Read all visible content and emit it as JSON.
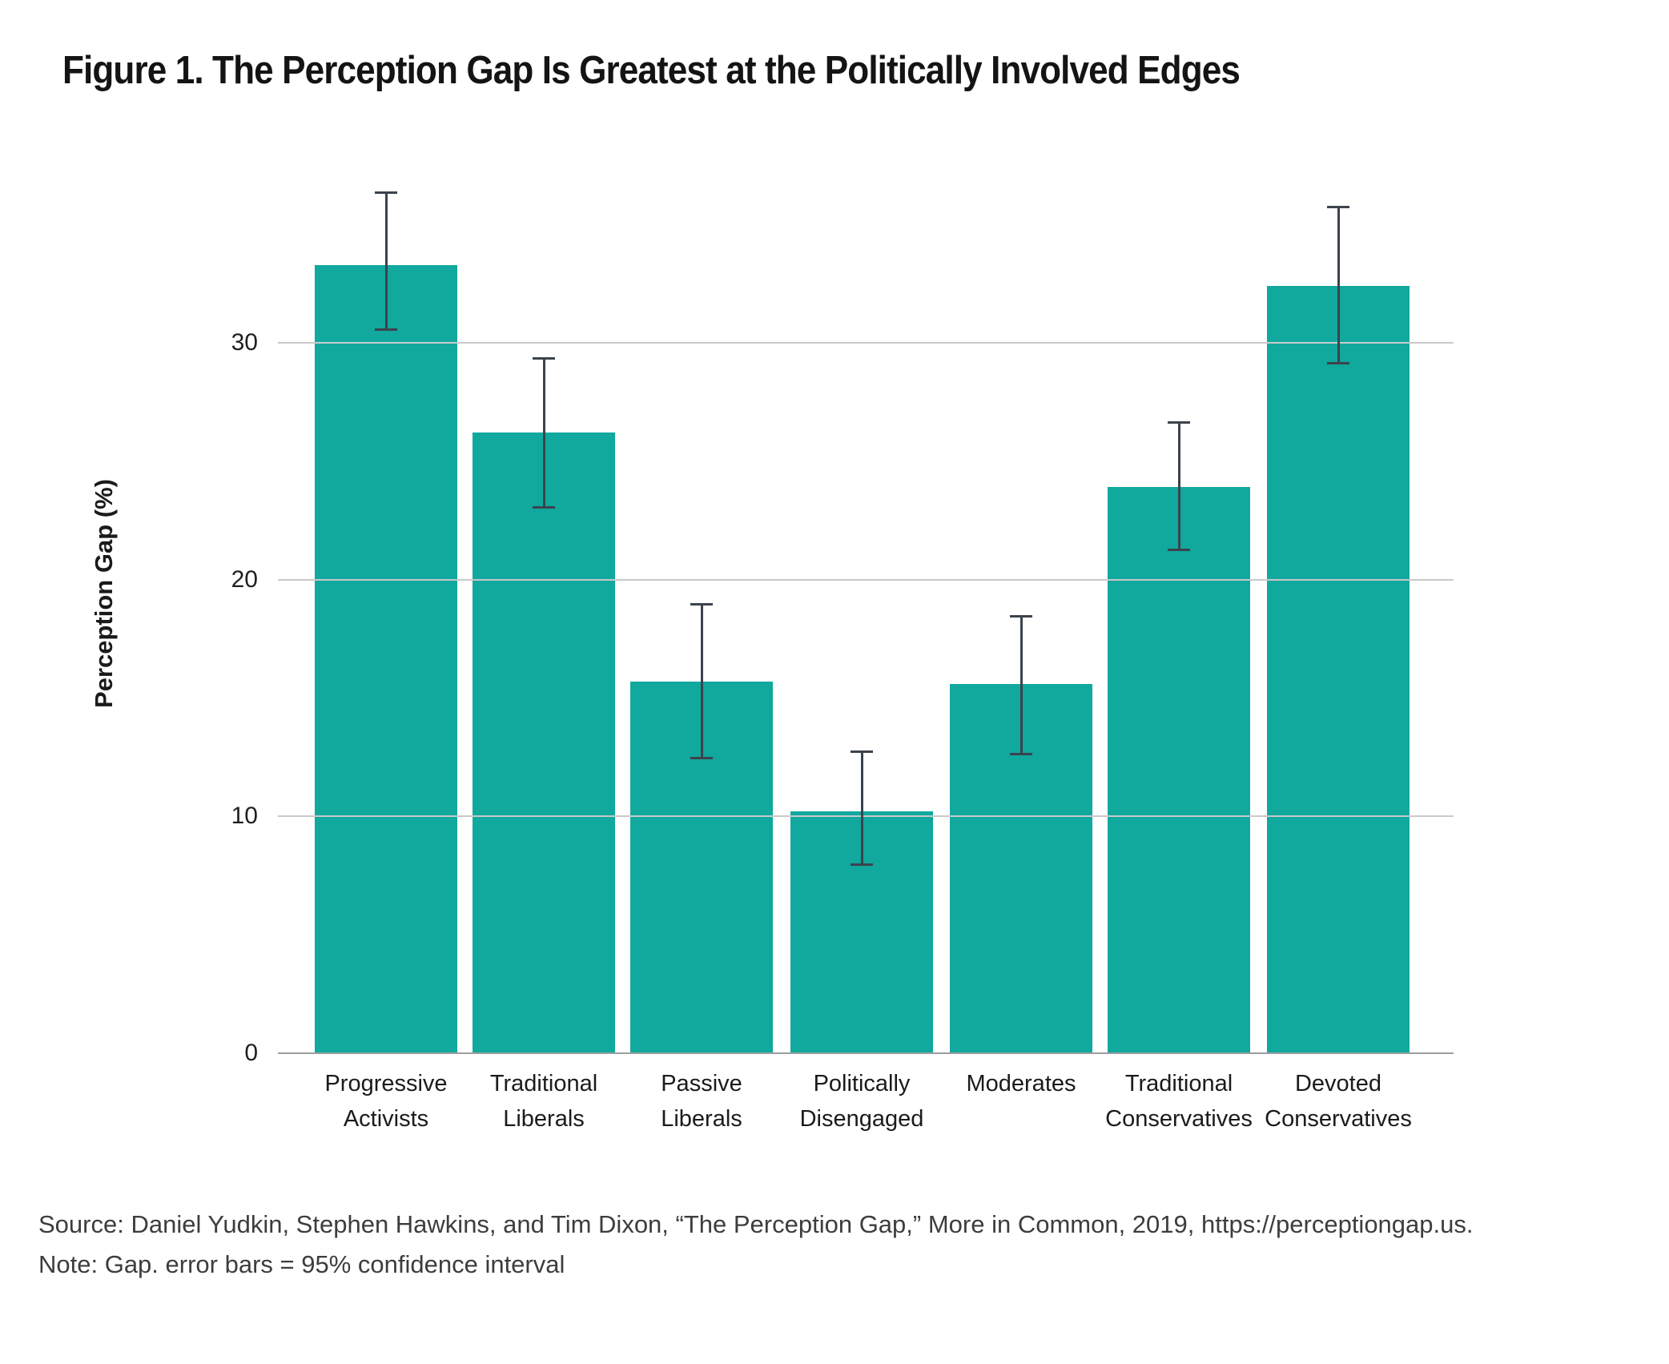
{
  "title": "Figure 1. The Perception Gap Is Greatest at the Politically Involved Edges",
  "source": "Source: Daniel Yudkin, Stephen Hawkins, and Tim Dixon, “The Perception Gap,” More in Common, 2019, https://perceptiongap.us.",
  "note": "Note: Gap. error bars = 95% confidence interval",
  "colors": {
    "bar": "#11a89e",
    "error_bar": "#3c434d",
    "gridline": "#c9c9c9",
    "baseline": "#9e9e9e",
    "title_text": "#141414",
    "caption_text": "#3d3d3d"
  },
  "chart_data": {
    "type": "bar",
    "title": "Figure 1. The Perception Gap Is Greatest at the Politically Involved Edges",
    "xlabel": "",
    "ylabel": "Perception Gap (%)",
    "categories": [
      "Progressive Activists",
      "Traditional Liberals",
      "Passive Liberals",
      "Politically Disengaged",
      "Moderates",
      "Traditional Conservatives",
      "Devoted Conservatives"
    ],
    "values": [
      33.3,
      26.2,
      15.7,
      10.2,
      15.6,
      23.9,
      32.4
    ],
    "ci_low": [
      30.5,
      23.0,
      12.4,
      7.9,
      12.6,
      21.2,
      29.1
    ],
    "ci_high": [
      36.4,
      29.4,
      19.0,
      12.8,
      18.5,
      26.7,
      35.8
    ],
    "error_bars": "95% confidence interval",
    "yticks": [
      0,
      10,
      20,
      30
    ],
    "ylim": [
      0,
      38.8
    ],
    "grid": "horizontal gridlines at 10, 20, 30 drawn over bars",
    "legend": "none"
  }
}
